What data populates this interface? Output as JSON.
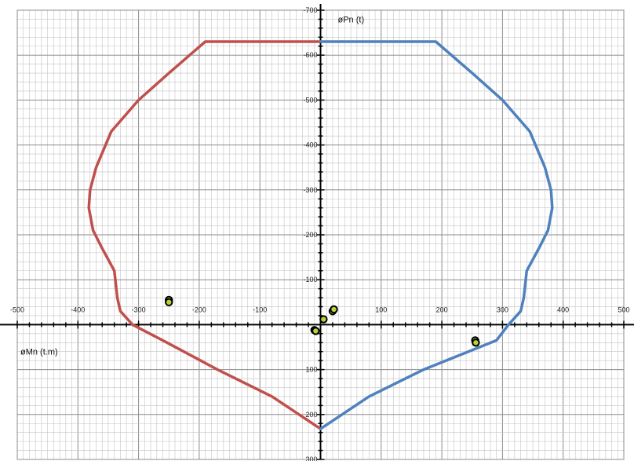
{
  "chart_data": {
    "type": "scatter",
    "title": "",
    "xlabel": "øMn (t.m)",
    "ylabel": "øPn (t)",
    "xlim": [
      -500,
      500
    ],
    "ylim": [
      300,
      -700
    ],
    "y_axis_reversed": true,
    "grid": true,
    "minor_grid": true,
    "x_ticks": [
      -500,
      -400,
      -300,
      -200,
      -100,
      0,
      100,
      200,
      300,
      400,
      500
    ],
    "x_tick_labels": [
      "-500",
      "-400",
      "-300",
      "-200",
      "-100",
      "0",
      "100",
      "200",
      "300",
      "400",
      "500"
    ],
    "y_ticks": [
      -700,
      -600,
      -500,
      -400,
      -300,
      -200,
      -100,
      100,
      200,
      300
    ],
    "y_tick_labels": [
      "-700",
      "-600",
      "-500",
      "-400",
      "-300",
      "-200",
      "-100",
      "100",
      "200",
      "300"
    ],
    "series": [
      {
        "kind": "line",
        "color": "#c0504d",
        "points": [
          [
            0,
            -630
          ],
          [
            -190,
            -630
          ],
          [
            -250,
            -560
          ],
          [
            -300,
            -500
          ],
          [
            -345,
            -430
          ],
          [
            -370,
            -350
          ],
          [
            -380,
            -300
          ],
          [
            -382,
            -260
          ],
          [
            -375,
            -210
          ],
          [
            -360,
            -170
          ],
          [
            -340,
            -120
          ],
          [
            -335,
            -60
          ],
          [
            -330,
            -30
          ],
          [
            -310,
            0
          ],
          [
            -260,
            35
          ],
          [
            -170,
            100
          ],
          [
            -80,
            160
          ],
          [
            0,
            232
          ]
        ]
      },
      {
        "kind": "line",
        "color": "#4f81bd",
        "points": [
          [
            0,
            -630
          ],
          [
            190,
            -630
          ],
          [
            250,
            -560
          ],
          [
            300,
            -500
          ],
          [
            345,
            -430
          ],
          [
            370,
            -350
          ],
          [
            380,
            -300
          ],
          [
            382,
            -260
          ],
          [
            375,
            -210
          ],
          [
            360,
            -170
          ],
          [
            340,
            -120
          ],
          [
            335,
            -60
          ],
          [
            330,
            -30
          ],
          [
            310,
            0
          ],
          [
            290,
            35
          ],
          [
            170,
            100
          ],
          [
            80,
            160
          ],
          [
            0,
            232
          ]
        ]
      },
      {
        "kind": "markers",
        "color": "#b5d334",
        "edge_color": "#000000",
        "points": [
          [
            -250,
            -55
          ],
          [
            -250,
            -50
          ],
          [
            -10,
            12
          ],
          [
            -8,
            14
          ],
          [
            5,
            -12
          ],
          [
            20,
            -30
          ],
          [
            22,
            -34
          ],
          [
            255,
            35
          ],
          [
            256,
            40
          ]
        ]
      }
    ]
  }
}
